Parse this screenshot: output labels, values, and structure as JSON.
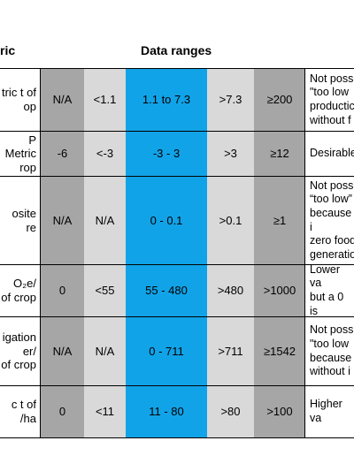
{
  "colors": {
    "dark_gray": "#a6a6a6",
    "light_gray": "#d9d9d9",
    "blue": "#11a3e8",
    "white": "#ffffff"
  },
  "headers": {
    "metric": "ric",
    "data_ranges": "Data ranges"
  },
  "rows": [
    {
      "metric": "tric t of\nop",
      "c1": "N/A",
      "c2": "<1.1",
      "c3": "1.1 to 7.3",
      "c4": ">7.3",
      "c5": "≥200",
      "note": "Not poss\n\"too low\nproductic\nwithout f"
    },
    {
      "metric": "P\nMetric\nrop",
      "c1": "-6",
      "c2": "<-3",
      "c3": "-3 - 3",
      "c4": ">3",
      "c5": "≥12",
      "note": "Desirable"
    },
    {
      "metric": "osite\nre",
      "c1": "N/A",
      "c2": "N/A",
      "c3": "0 - 0.1",
      "c4": ">0.1",
      "c5": "≥1",
      "note": "Not possi\n“too low”\nbecause i\nzero food\ngeneratio"
    },
    {
      "metric": "O₂e/\nof crop",
      "c1": "0",
      "c2": "<55",
      "c3": "55 - 480",
      "c4": ">480",
      "c5": ">1000",
      "note": "Lower va\nbut a 0 is"
    },
    {
      "metric": "igation\ner/\nof crop",
      "c1": "N/A",
      "c2": "N/A",
      "c3": "0 - 711",
      "c4": ">711",
      "c5": "≥1542",
      "note": "Not poss\n\"too low\nbecause\nwithout i"
    },
    {
      "metric": "c t of\n/ha",
      "c1": "0",
      "c2": "<11",
      "c3": "11 - 80",
      "c4": ">80",
      "c5": ">100",
      "note": "Higher va"
    }
  ]
}
